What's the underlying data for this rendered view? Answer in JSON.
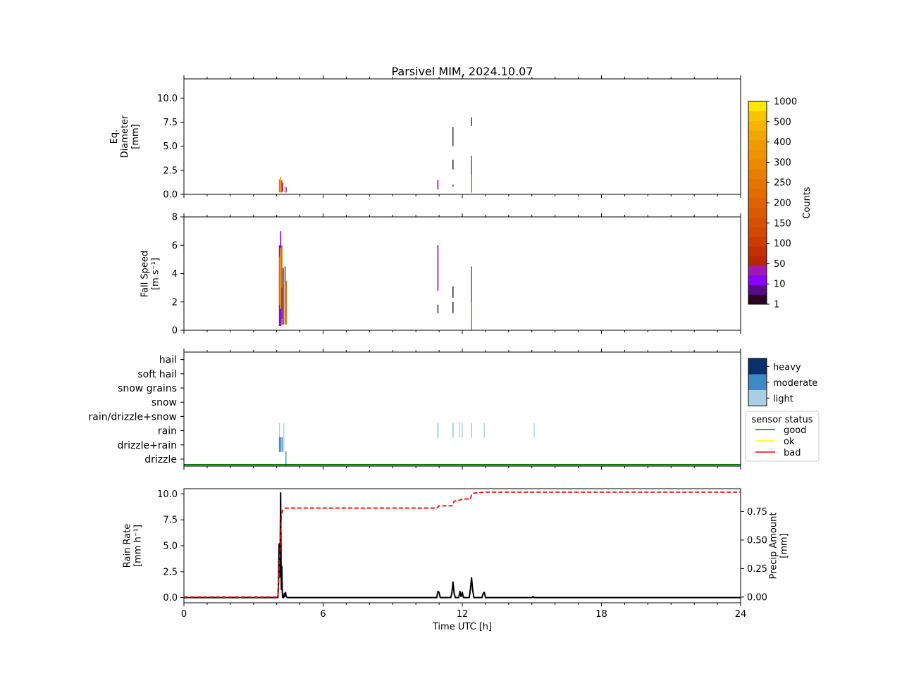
{
  "figure": {
    "title": "Parsivel MIM, 2024.10.07"
  },
  "chart_data": [
    {
      "id": "diameter",
      "type": "heatmap",
      "ylabel": [
        "Eq.",
        "Diameter",
        "[mm]"
      ],
      "xlim": [
        0,
        24
      ],
      "ylim": [
        0,
        12
      ],
      "yticks": [
        "0.0",
        "2.5",
        "5.0",
        "7.5",
        "10.0"
      ],
      "ytick_values": [
        0,
        2.5,
        5,
        7.5,
        10
      ],
      "bars": [
        {
          "t": 4.12,
          "w": 0.05,
          "y0": 0.2,
          "y1": 1.55,
          "c": "#e07000"
        },
        {
          "t": 4.17,
          "w": 0.05,
          "y0": 0.2,
          "y1": 1.75,
          "c": "#f2a000"
        },
        {
          "t": 4.22,
          "w": 0.05,
          "y0": 0.2,
          "y1": 1.45,
          "c": "#d04800"
        },
        {
          "t": 4.26,
          "w": 0.04,
          "y0": 0.3,
          "y1": 1.2,
          "c": "#8c00e0"
        },
        {
          "t": 4.35,
          "w": 0.03,
          "y0": 0.2,
          "y1": 0.85,
          "c": "#e8a000"
        },
        {
          "t": 4.41,
          "w": 0.03,
          "y0": 0.2,
          "y1": 0.75,
          "c": "#8c00e0"
        },
        {
          "t": 10.95,
          "w": 0.05,
          "y0": 0.5,
          "y1": 1.5,
          "c": "#8a00ff"
        },
        {
          "t": 11.6,
          "w": 0.03,
          "y0": 5.0,
          "y1": 7.0,
          "c": "#1a0a1a"
        },
        {
          "t": 11.6,
          "w": 0.04,
          "y0": 2.6,
          "y1": 3.6,
          "c": "#1a0a1a"
        },
        {
          "t": 11.6,
          "w": 0.04,
          "y0": 0.8,
          "y1": 1.0,
          "c": "#1a0a1a"
        },
        {
          "t": 12.4,
          "w": 0.03,
          "y0": 7.1,
          "y1": 8.0,
          "c": "#1a0a1a"
        },
        {
          "t": 12.4,
          "w": 0.04,
          "y0": 0.2,
          "y1": 4.0,
          "c": "#8a00ff"
        },
        {
          "t": 12.4,
          "w": 0.03,
          "y0": 0.2,
          "y1": 2.0,
          "c": "#e06800"
        }
      ]
    },
    {
      "id": "fall_speed",
      "type": "heatmap",
      "ylabel": [
        "Fall Speed",
        "[m s⁻¹]"
      ],
      "xlim": [
        0,
        24
      ],
      "ylim": [
        0,
        8
      ],
      "yticks": [
        "0",
        "2",
        "4",
        "6",
        "8"
      ],
      "ytick_values": [
        0,
        2,
        4,
        6,
        8
      ],
      "bars": [
        {
          "t": 4.12,
          "w": 0.05,
          "y0": 0.3,
          "y1": 6.0,
          "c": "#8a00ff"
        },
        {
          "t": 4.12,
          "w": 0.05,
          "y0": 1.8,
          "y1": 5.2,
          "c": "#e07000"
        },
        {
          "t": 4.17,
          "w": 0.05,
          "y0": 0.3,
          "y1": 7.0,
          "c": "#8a00ff"
        },
        {
          "t": 4.17,
          "w": 0.05,
          "y0": 1.5,
          "y1": 5.8,
          "c": "#f2a000"
        },
        {
          "t": 4.22,
          "w": 0.05,
          "y0": 0.4,
          "y1": 6.0,
          "c": "#e06000"
        },
        {
          "t": 4.22,
          "w": 0.05,
          "y0": 0.8,
          "y1": 3.0,
          "c": "#c43000"
        },
        {
          "t": 4.28,
          "w": 0.04,
          "y0": 0.4,
          "y1": 4.4,
          "c": "#1a0a1a"
        },
        {
          "t": 4.36,
          "w": 0.03,
          "y0": 0.4,
          "y1": 4.5,
          "c": "#1a0a1a"
        },
        {
          "t": 4.42,
          "w": 0.03,
          "y0": 0.4,
          "y1": 3.5,
          "c": "#e07000"
        },
        {
          "t": 10.95,
          "w": 0.05,
          "y0": 2.8,
          "y1": 6.0,
          "c": "#8a00ff"
        },
        {
          "t": 10.95,
          "w": 0.04,
          "y0": 1.2,
          "y1": 1.8,
          "c": "#1a0a1a"
        },
        {
          "t": 11.6,
          "w": 0.04,
          "y0": 2.3,
          "y1": 3.1,
          "c": "#1a0a1a"
        },
        {
          "t": 11.6,
          "w": 0.04,
          "y0": 1.2,
          "y1": 2.0,
          "c": "#1a0a1a"
        },
        {
          "t": 12.4,
          "w": 0.04,
          "y0": 0.0,
          "y1": 4.5,
          "c": "#8a00ff"
        },
        {
          "t": 12.4,
          "w": 0.03,
          "y0": 0.0,
          "y1": 2.0,
          "c": "#e06800"
        }
      ]
    },
    {
      "id": "precip_type",
      "type": "heatmap",
      "xlim": [
        0,
        24
      ],
      "categories": [
        "drizzle",
        "drizzle+rain",
        "rain",
        "rain/drizzle+snow",
        "snow",
        "snow grains",
        "soft hail",
        "hail"
      ],
      "bars": [
        {
          "t": 4.12,
          "w": 0.03,
          "cat": 2,
          "c": "#aacde6"
        },
        {
          "t": 4.12,
          "w": 0.05,
          "cat": 1,
          "c": "#3d8ac4"
        },
        {
          "t": 4.18,
          "w": 0.05,
          "cat": 1,
          "c": "#3d8ac4"
        },
        {
          "t": 4.24,
          "w": 0.04,
          "cat": 1,
          "c": "#3d8ac4"
        },
        {
          "t": 4.31,
          "w": 0.03,
          "cat": 1,
          "c": "#aacde6"
        },
        {
          "t": 4.31,
          "w": 0.03,
          "cat": 2,
          "c": "#aacde6"
        },
        {
          "t": 4.4,
          "w": 0.04,
          "cat": 0,
          "c": "#3d8ac4"
        },
        {
          "t": 10.95,
          "w": 0.06,
          "cat": 2,
          "c": "#aacde6"
        },
        {
          "t": 11.6,
          "w": 0.06,
          "cat": 2,
          "c": "#aacde6"
        },
        {
          "t": 11.88,
          "w": 0.04,
          "cat": 2,
          "c": "#aacde6"
        },
        {
          "t": 12.0,
          "w": 0.04,
          "cat": 2,
          "c": "#aacde6"
        },
        {
          "t": 12.4,
          "w": 0.05,
          "cat": 2,
          "c": "#aacde6"
        },
        {
          "t": 12.95,
          "w": 0.04,
          "cat": 2,
          "c": "#aacde6"
        },
        {
          "t": 15.1,
          "w": 0.04,
          "cat": 2,
          "c": "#aacde6"
        }
      ],
      "status_line": {
        "label": "good",
        "color": "#008000"
      },
      "intensity_colorbar": {
        "labels": [
          "heavy",
          "moderate",
          "light"
        ],
        "colors": [
          "#08306b",
          "#3d8ac4",
          "#a9cfe5"
        ]
      },
      "legend": {
        "title": "sensor status",
        "entries": [
          {
            "label": "good",
            "color": "#008000"
          },
          {
            "label": "ok",
            "color": "#ffff00"
          },
          {
            "label": "bad",
            "color": "#ff0000"
          }
        ]
      }
    },
    {
      "id": "rain_rate",
      "type": "line",
      "xlabel": "Time UTC [h]",
      "ylabel": [
        "Rain Rate",
        "[mm h⁻¹]"
      ],
      "ylabel_right": [
        "Precip Amount",
        "[mm]"
      ],
      "xlim": [
        0,
        24
      ],
      "xticks": [
        "0",
        "6",
        "12",
        "18",
        "24"
      ],
      "xtick_values": [
        0,
        6,
        12,
        18,
        24
      ],
      "ylim": [
        -0.5,
        10.5
      ],
      "yticks": [
        "0.0",
        "2.5",
        "5.0",
        "7.5",
        "10.0"
      ],
      "ytick_values": [
        0,
        2.5,
        5,
        7.5,
        10
      ],
      "ylim_right": [
        -0.05,
        0.95
      ],
      "yticks_right": [
        "0.00",
        "0.25",
        "0.50",
        "0.75"
      ],
      "ytick_values_right": [
        0,
        0.25,
        0.5,
        0.75
      ],
      "series": [
        {
          "name": "",
          "color": "#000000",
          "axis": "left",
          "dash": "solid",
          "x": [
            0,
            4.05,
            4.08,
            4.1,
            4.12,
            4.14,
            4.17,
            4.19,
            4.2,
            4.22,
            4.24,
            4.26,
            4.3,
            4.33,
            4.36,
            4.38,
            4.4,
            4.45,
            10.9,
            10.95,
            11.0,
            11.05,
            11.5,
            11.55,
            11.6,
            11.65,
            11.7,
            11.85,
            11.9,
            11.95,
            12.0,
            12.05,
            12.3,
            12.35,
            12.4,
            12.45,
            12.5,
            12.85,
            12.9,
            12.95,
            13.0,
            15.0,
            15.05,
            15.1,
            24
          ],
          "y": [
            0,
            0,
            1.5,
            5.1,
            5.2,
            2.0,
            10.1,
            2.5,
            0.8,
            3.0,
            0.5,
            0,
            0,
            0.4,
            0.1,
            0.5,
            0.2,
            0,
            0,
            0.6,
            0.5,
            0,
            0,
            0.4,
            1.5,
            0.4,
            0,
            0,
            0.6,
            0.1,
            0.5,
            0,
            0,
            0.8,
            1.9,
            0.7,
            0,
            0,
            0.4,
            0.5,
            0,
            0,
            0.1,
            0,
            0
          ]
        },
        {
          "name": "",
          "color": "#ff0000",
          "axis": "right",
          "dash": "dashed",
          "x": [
            0,
            4.05,
            4.1,
            4.15,
            4.2,
            4.25,
            4.3,
            4.35,
            4.45,
            10.9,
            10.95,
            11.0,
            11.55,
            11.6,
            11.65,
            11.9,
            12.0,
            12.35,
            12.4,
            12.45,
            13.0,
            24
          ],
          "y": [
            0,
            0,
            0.2,
            0.45,
            0.72,
            0.76,
            0.77,
            0.78,
            0.78,
            0.78,
            0.79,
            0.8,
            0.8,
            0.82,
            0.84,
            0.85,
            0.86,
            0.86,
            0.9,
            0.91,
            0.92,
            0.92
          ]
        }
      ]
    },
    {
      "id": "counts_colorbar",
      "type": "heatmap",
      "label": "Counts",
      "ticks": [
        "1",
        "10",
        "50",
        "100",
        "150",
        "200",
        "250",
        "300",
        "400",
        "500",
        "1000"
      ],
      "colors": [
        "#2a0420",
        "#560a86",
        "#8a00ff",
        "#a018b4",
        "#b82800",
        "#c43000",
        "#cc3c00",
        "#d24800",
        "#d65000",
        "#da5a00",
        "#de6200",
        "#e26c00",
        "#e47400",
        "#e87e00",
        "#ea8800",
        "#ee9200",
        "#f09a00",
        "#f2a600",
        "#f6b400",
        "#f8c400",
        "#ffe600"
      ]
    }
  ]
}
